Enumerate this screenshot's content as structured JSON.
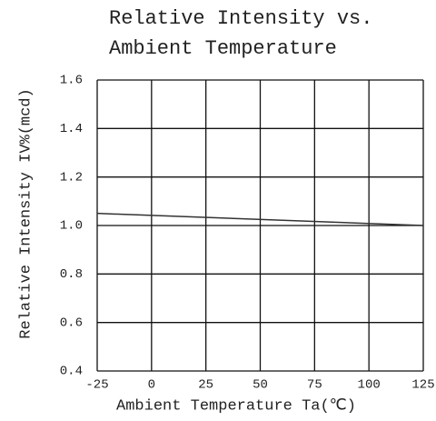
{
  "chart_data": {
    "type": "line",
    "title": [
      "Relative Intensity vs.",
      "Ambient Temperature"
    ],
    "x_label": "Ambient Temperature Ta(℃)",
    "y_label": "Relative Intensity IV%(mcd)",
    "xlim": [
      -25,
      125
    ],
    "xticks": [
      -25,
      0,
      25,
      50,
      75,
      100,
      125
    ],
    "ylim": [
      0.4,
      1.6
    ],
    "yticks": [
      0.4,
      0.6,
      0.8,
      {
        "value": 1,
        "label": "1.0"
      },
      1.2,
      1.4,
      1.6
    ],
    "grid": true,
    "series": [
      {
        "color": "#333333",
        "x": [
          -25,
          125
        ],
        "values": [
          1.05,
          1.0
        ]
      }
    ]
  }
}
